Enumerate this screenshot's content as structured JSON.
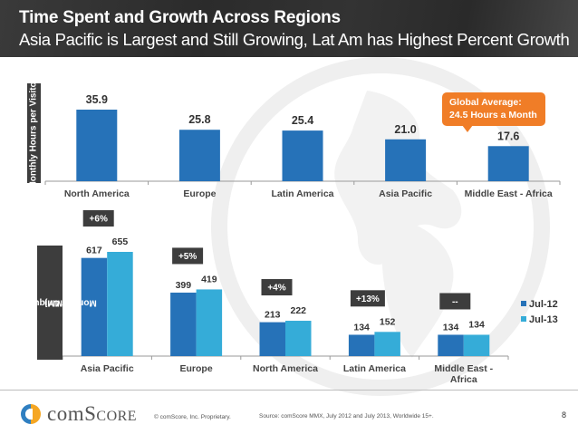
{
  "header": {
    "title": "Time Spent and Growth Across Regions",
    "subtitle": "Asia Pacific is Largest and Still Growing, Lat Am has Highest Percent Growth"
  },
  "callout": {
    "line1": "Global Average:",
    "line2": "24.5 Hours a Month"
  },
  "colors": {
    "bar_primary": "#2672b8",
    "series_jul12": "#2672b8",
    "series_jul13": "#35acd8",
    "label_box": "#3d3d3d",
    "callout": "#f07d27"
  },
  "chart_data": [
    {
      "type": "bar",
      "title": "Monthly Hours per Visitor",
      "ylabel": "Monthly Hours per Visitor",
      "xlabel": "",
      "categories": [
        "North America",
        "Europe",
        "Latin America",
        "Asia Pacific",
        "Middle East - Africa"
      ],
      "values": [
        35.9,
        25.8,
        25.4,
        21.0,
        17.6
      ],
      "value_labels": [
        "35.9",
        "25.8",
        "25.4",
        "21.0",
        "17.6"
      ],
      "ylim": [
        0,
        40
      ],
      "grid": false,
      "annotation": "Global Average: 24.5 Hours a Month"
    },
    {
      "type": "bar",
      "title": "Monthly Unique Visitors (MM)",
      "ylabel_line1": "Monthly Unique Visitors",
      "ylabel_line2": "(MM)",
      "xlabel": "",
      "categories": [
        "Asia Pacific",
        "Europe",
        "North America",
        "Latin America",
        "Middle East - Africa"
      ],
      "category_lines": [
        [
          "Asia Pacific"
        ],
        [
          "Europe"
        ],
        [
          "North America"
        ],
        [
          "Latin America"
        ],
        [
          "Middle East -",
          "Africa"
        ]
      ],
      "series": [
        {
          "name": "Jul-12",
          "values": [
            617,
            399,
            213,
            134,
            134
          ]
        },
        {
          "name": "Jul-13",
          "values": [
            655,
            419,
            222,
            152,
            134
          ]
        }
      ],
      "growth_labels": [
        "+6%",
        "+5%",
        "+4%",
        "+13%",
        "--"
      ],
      "ylim": [
        0,
        700
      ],
      "grid": false,
      "legend": "right"
    }
  ],
  "footer": {
    "logo_text": "comScore",
    "logo_prefix": "com",
    "logo_suffix": "Score",
    "copyright": "© comScore, Inc.   Proprietary.",
    "source": "Source: comScore MMX, July 2012 and July 2013, Worldwide 15+.",
    "page_number": "8"
  }
}
